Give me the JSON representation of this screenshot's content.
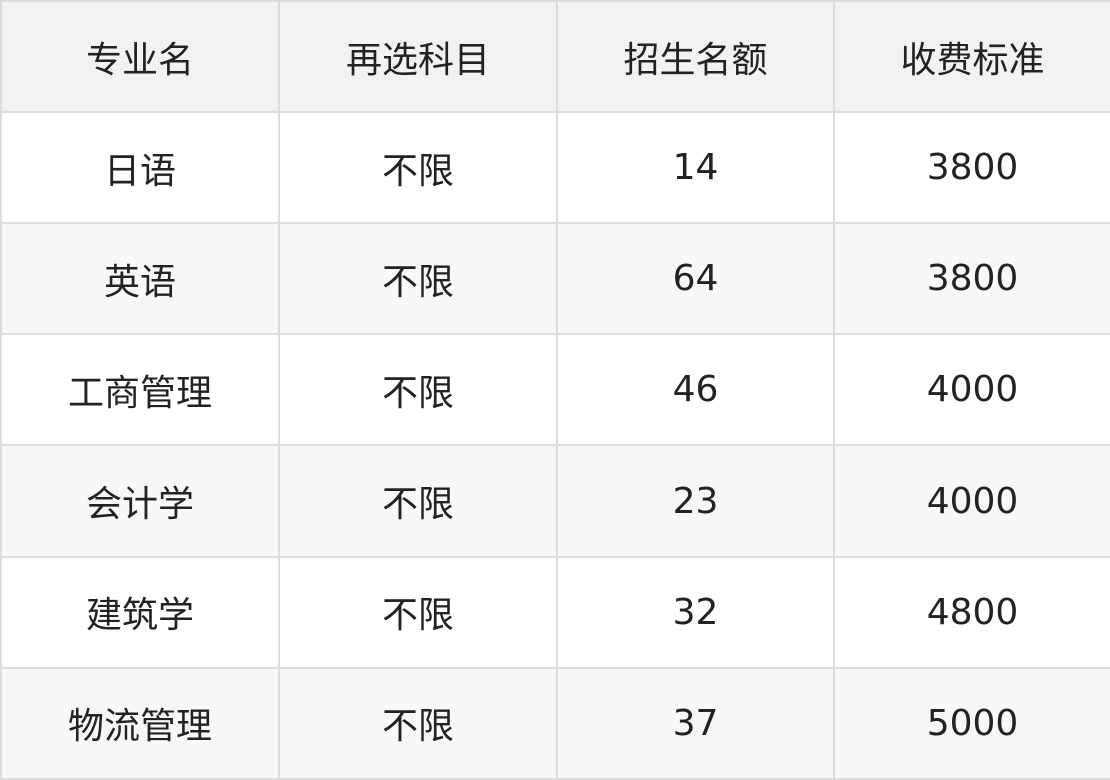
{
  "table": {
    "headers": [
      "专业名",
      "再选科目",
      "招生名额",
      "收费标准"
    ],
    "rows": [
      [
        "日语",
        "不限",
        "14",
        "3800"
      ],
      [
        "英语",
        "不限",
        "64",
        "3800"
      ],
      [
        "工商管理",
        "不限",
        "46",
        "4000"
      ],
      [
        "会计学",
        "不限",
        "23",
        "4000"
      ],
      [
        "建筑学",
        "不限",
        "32",
        "4800"
      ],
      [
        "物流管理",
        "不限",
        "37",
        "5000"
      ]
    ]
  },
  "colors": {
    "header_bg": "#f2f2f2",
    "border": "#dcdcdc",
    "alt_row_bg": "#f8f8f8"
  }
}
